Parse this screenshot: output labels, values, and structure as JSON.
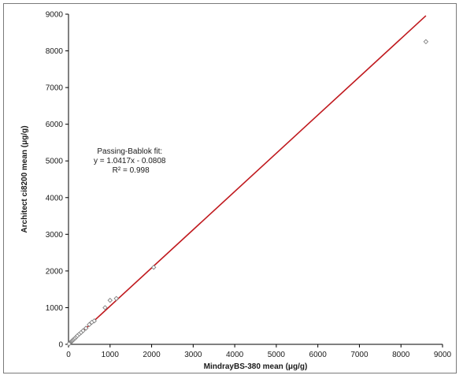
{
  "chart_data": {
    "type": "scatter",
    "title": "",
    "xlabel": "MindrayBS-380 mean (μg/g)",
    "ylabel": "Architect ci8200 mean (μg/g)",
    "xlim": [
      0,
      9000
    ],
    "ylim": [
      0,
      9000
    ],
    "x_ticks": [
      0,
      1000,
      2000,
      3000,
      4000,
      5000,
      6000,
      7000,
      8000,
      9000
    ],
    "y_ticks": [
      0,
      1000,
      2000,
      3000,
      4000,
      5000,
      6000,
      7000,
      8000,
      9000
    ],
    "x_tick_labels": [
      "0",
      "1000",
      "2000",
      "3000",
      "4000",
      "5000",
      "6000",
      "7000",
      "8000",
      "9000"
    ],
    "y_tick_labels": [
      "0",
      "1000",
      "2000",
      "3000",
      "4000",
      "5000",
      "6000",
      "7000",
      "8000",
      "9000"
    ],
    "grid": false,
    "legend": "none",
    "points": [
      {
        "x": 8600,
        "y": 8250
      },
      {
        "x": 2050,
        "y": 2100
      },
      {
        "x": 1150,
        "y": 1250
      },
      {
        "x": 1000,
        "y": 1200
      },
      {
        "x": 880,
        "y": 1000
      },
      {
        "x": 620,
        "y": 640
      },
      {
        "x": 560,
        "y": 600
      },
      {
        "x": 500,
        "y": 540
      },
      {
        "x": 420,
        "y": 440
      },
      {
        "x": 350,
        "y": 370
      },
      {
        "x": 300,
        "y": 320
      },
      {
        "x": 250,
        "y": 270
      },
      {
        "x": 210,
        "y": 230
      },
      {
        "x": 170,
        "y": 180
      },
      {
        "x": 140,
        "y": 150
      },
      {
        "x": 110,
        "y": 120
      },
      {
        "x": 90,
        "y": 95
      },
      {
        "x": 70,
        "y": 75
      },
      {
        "x": 50,
        "y": 55
      },
      {
        "x": 35,
        "y": 40
      },
      {
        "x": 20,
        "y": 25
      },
      {
        "x": 10,
        "y": 12
      }
    ],
    "fit_line": {
      "slope": 1.0417,
      "intercept": -0.0808,
      "x_range": [
        0,
        8600
      ],
      "color": "#c0191e"
    },
    "marker_color": "#7f7f7f",
    "annotation": {
      "lines": [
        "Passing-Bablok fit:",
        "y = 1.0417x - 0.0808",
        "R² = 0.998"
      ],
      "anchor_x": 1500,
      "anchor_y": 5200
    }
  }
}
